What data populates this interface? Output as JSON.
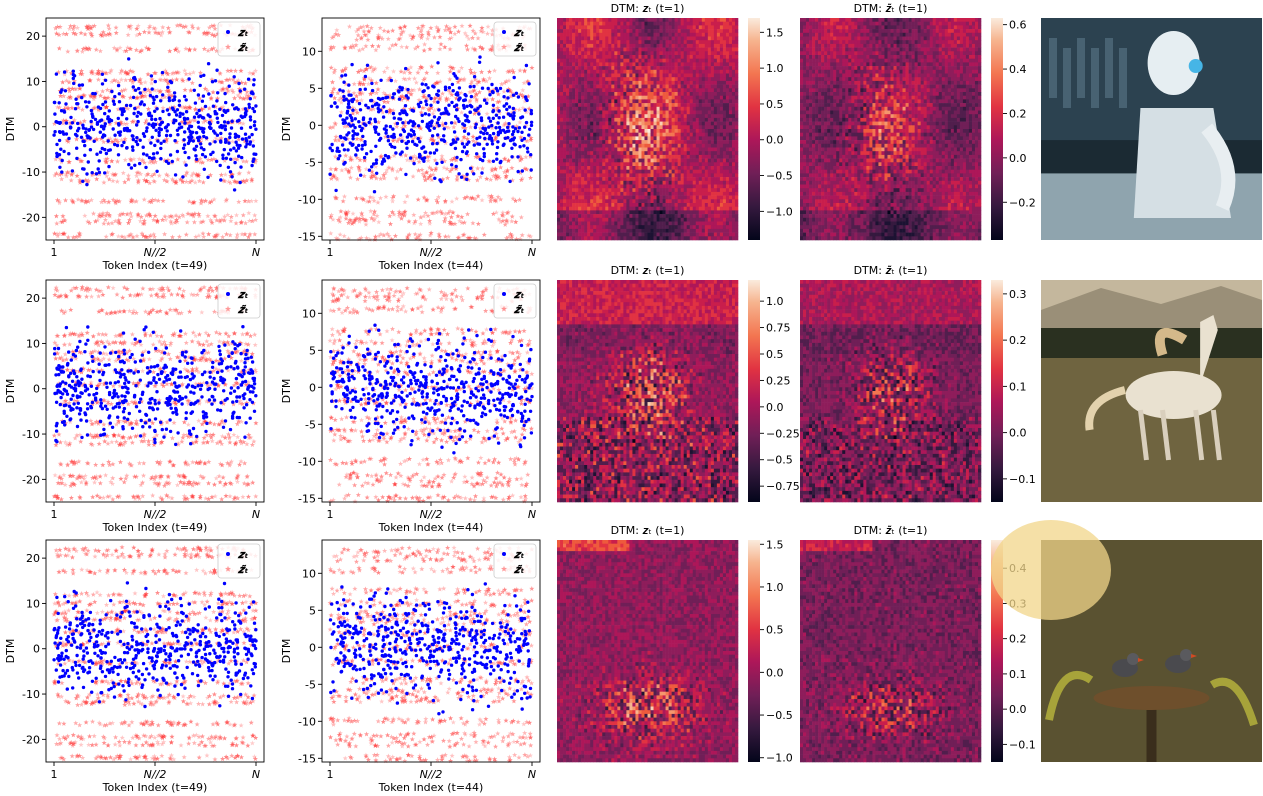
{
  "chart_data": [
    {
      "type": "scatter",
      "row": 0,
      "xlabel": "Token Index (t=49)",
      "ylabel": "DTM",
      "xticklabels": [
        "1",
        "N//2",
        "N"
      ],
      "ylim": [
        -25,
        24
      ],
      "yticks": [
        -20,
        -10,
        0,
        10,
        20
      ],
      "series": [
        {
          "name": "z_t",
          "legend": "𝒛ₜ",
          "color": "#0000ff",
          "marker": "circle",
          "spread": [
            -16,
            16
          ]
        },
        {
          "name": "z~_t",
          "legend": "𝒛̃ₜ",
          "color": "#ff3333",
          "marker": "star",
          "bands": [
            22,
            20.5,
            17,
            12,
            10,
            8,
            6.5,
            4,
            1,
            -3,
            -7.5,
            -10.5,
            -12,
            -16.5,
            -19.5,
            -21,
            -24
          ]
        }
      ],
      "legend": "upper right"
    },
    {
      "type": "scatter",
      "row": 0,
      "xlabel": "Token Index (t=44)",
      "ylabel": "DTM",
      "xticklabels": [
        "1",
        "N//2",
        "N"
      ],
      "ylim": [
        -15.5,
        14.5
      ],
      "yticks": [
        -15,
        -10,
        -5,
        0,
        5,
        10
      ],
      "series": [
        {
          "name": "z_t",
          "legend": "𝒛ₜ",
          "color": "#0000ff",
          "marker": "circle",
          "spread": [
            -10,
            10
          ]
        },
        {
          "name": "z~_t",
          "legend": "𝒛̃ₜ",
          "color": "#ff3333",
          "marker": "star",
          "bands": [
            13,
            12,
            10.5,
            7.5,
            6,
            4.5,
            3.5,
            2,
            0,
            -2,
            -4.5,
            -6,
            -7,
            -10,
            -12,
            -13,
            -15
          ]
        }
      ],
      "legend": "upper right"
    },
    {
      "type": "heatmap",
      "row": 0,
      "title": "DTM: z_t (t=1)",
      "title_display": "DTM: 𝒛ₜ (t=1)",
      "colorbar_ticks": [
        -1.0,
        -0.5,
        0.0,
        0.5,
        1.0,
        1.5
      ],
      "clim": [
        -1.4,
        1.7
      ],
      "colormap": "rocket"
    },
    {
      "type": "heatmap",
      "row": 0,
      "title": "DTM: z~_t (t=1)",
      "title_display": "DTM: 𝒛̃ₜ (t=1)",
      "colorbar_ticks": [
        -0.2,
        0.0,
        0.2,
        0.4,
        0.6
      ],
      "clim": [
        -0.37,
        0.63
      ],
      "colormap": "rocket"
    },
    {
      "type": "scatter",
      "row": 1,
      "xlabel": "Token Index (t=49)",
      "ylabel": "DTM",
      "xticklabels": [
        "1",
        "N//2",
        "N"
      ],
      "ylim": [
        -25,
        24
      ],
      "yticks": [
        -20,
        -10,
        0,
        10,
        20
      ],
      "series": [
        {
          "name": "z_t",
          "legend": "𝒛ₜ",
          "color": "#0000ff",
          "marker": "circle",
          "spread": [
            -16,
            16
          ]
        },
        {
          "name": "z~_t",
          "legend": "𝒛̃ₜ",
          "color": "#ff3333",
          "marker": "star",
          "bands": [
            22,
            20.5,
            17,
            12,
            10,
            8,
            6.5,
            4,
            1,
            -3,
            -7.5,
            -10.5,
            -12,
            -16.5,
            -19.5,
            -21,
            -24
          ]
        }
      ],
      "legend": "upper right"
    },
    {
      "type": "scatter",
      "row": 1,
      "xlabel": "Token Index (t=44)",
      "ylabel": "DTM",
      "xticklabels": [
        "1",
        "N//2",
        "N"
      ],
      "ylim": [
        -15.5,
        14.5
      ],
      "yticks": [
        -15,
        -10,
        -5,
        0,
        5,
        10
      ],
      "series": [
        {
          "name": "z_t",
          "legend": "𝒛ₜ",
          "color": "#0000ff",
          "marker": "circle",
          "spread": [
            -10,
            10
          ]
        },
        {
          "name": "z~_t",
          "legend": "𝒛̃ₜ",
          "color": "#ff3333",
          "marker": "star",
          "bands": [
            13,
            12,
            10.5,
            7.5,
            6,
            4.5,
            3.5,
            2,
            0,
            -2,
            -4.5,
            -6,
            -7,
            -10,
            -12,
            -13,
            -15
          ]
        }
      ],
      "legend": "upper right"
    },
    {
      "type": "heatmap",
      "row": 1,
      "title": "DTM: z_t (t=1)",
      "title_display": "DTM: 𝒛ₜ (t=1)",
      "colorbar_ticks": [
        -0.75,
        -0.5,
        -0.25,
        0.0,
        0.25,
        0.5,
        0.75,
        1.0
      ],
      "clim": [
        -0.9,
        1.2
      ],
      "colormap": "rocket"
    },
    {
      "type": "heatmap",
      "row": 1,
      "title": "DTM: z~_t (t=1)",
      "title_display": "DTM: 𝒛̃ₜ (t=1)",
      "colorbar_ticks": [
        -0.1,
        0.0,
        0.1,
        0.2,
        0.3
      ],
      "clim": [
        -0.15,
        0.33
      ],
      "colormap": "rocket"
    },
    {
      "type": "scatter",
      "row": 2,
      "xlabel": "Token Index (t=49)",
      "ylabel": "DTM",
      "xticklabels": [
        "1",
        "N//2",
        "N"
      ],
      "ylim": [
        -25,
        24
      ],
      "yticks": [
        -20,
        -10,
        0,
        10,
        20
      ],
      "series": [
        {
          "name": "z_t",
          "legend": "𝒛ₜ",
          "color": "#0000ff",
          "marker": "circle",
          "spread": [
            -16,
            16
          ]
        },
        {
          "name": "z~_t",
          "legend": "𝒛̃ₜ",
          "color": "#ff3333",
          "marker": "star",
          "bands": [
            22,
            20.5,
            17,
            12,
            10,
            8,
            6.5,
            4,
            1,
            -3,
            -7.5,
            -10.5,
            -12,
            -16.5,
            -19.5,
            -21,
            -24
          ]
        }
      ],
      "legend": "upper right"
    },
    {
      "type": "scatter",
      "row": 2,
      "xlabel": "Token Index (t=44)",
      "ylabel": "DTM",
      "xticklabels": [
        "1",
        "N//2",
        "N"
      ],
      "ylim": [
        -15.5,
        14.5
      ],
      "yticks": [
        -15,
        -10,
        -5,
        0,
        5,
        10
      ],
      "series": [
        {
          "name": "z_t",
          "legend": "𝒛ₜ",
          "color": "#0000ff",
          "marker": "circle",
          "spread": [
            -10,
            10
          ]
        },
        {
          "name": "z~_t",
          "legend": "𝒛̃ₜ",
          "color": "#ff3333",
          "marker": "star",
          "bands": [
            13,
            12,
            10.5,
            7.5,
            6,
            4.5,
            3.5,
            2,
            0,
            -2,
            -4.5,
            -6,
            -7,
            -10,
            -12,
            -13,
            -15
          ]
        }
      ],
      "legend": "upper right"
    },
    {
      "type": "heatmap",
      "row": 2,
      "title": "DTM: z_t (t=1)",
      "title_display": "DTM: 𝒛ₜ (t=1)",
      "colorbar_ticks": [
        -1.0,
        -0.5,
        0.0,
        0.5,
        1.0,
        1.5
      ],
      "clim": [
        -1.05,
        1.55
      ],
      "colormap": "rocket"
    },
    {
      "type": "heatmap",
      "row": 2,
      "title": "DTM: z~_t (t=1)",
      "title_display": "DTM: 𝒛̃ₜ (t=1)",
      "colorbar_ticks": [
        -0.1,
        0.0,
        0.1,
        0.2,
        0.3,
        0.4
      ],
      "clim": [
        -0.15,
        0.48
      ],
      "colormap": "rocket"
    }
  ],
  "images": [
    {
      "row": 0,
      "subject": "robot-in-lab",
      "palette": [
        "#1b2a33",
        "#9fb3bf",
        "#e6eef2",
        "#4a6270"
      ]
    },
    {
      "row": 1,
      "subject": "running-horse",
      "palette": [
        "#3a3424",
        "#8a7c52",
        "#d9cdb0",
        "#f2e9d6"
      ]
    },
    {
      "row": 2,
      "subject": "birds-on-nest",
      "palette": [
        "#2b2a1a",
        "#6b6a34",
        "#c9a95a",
        "#f0d891"
      ]
    }
  ]
}
